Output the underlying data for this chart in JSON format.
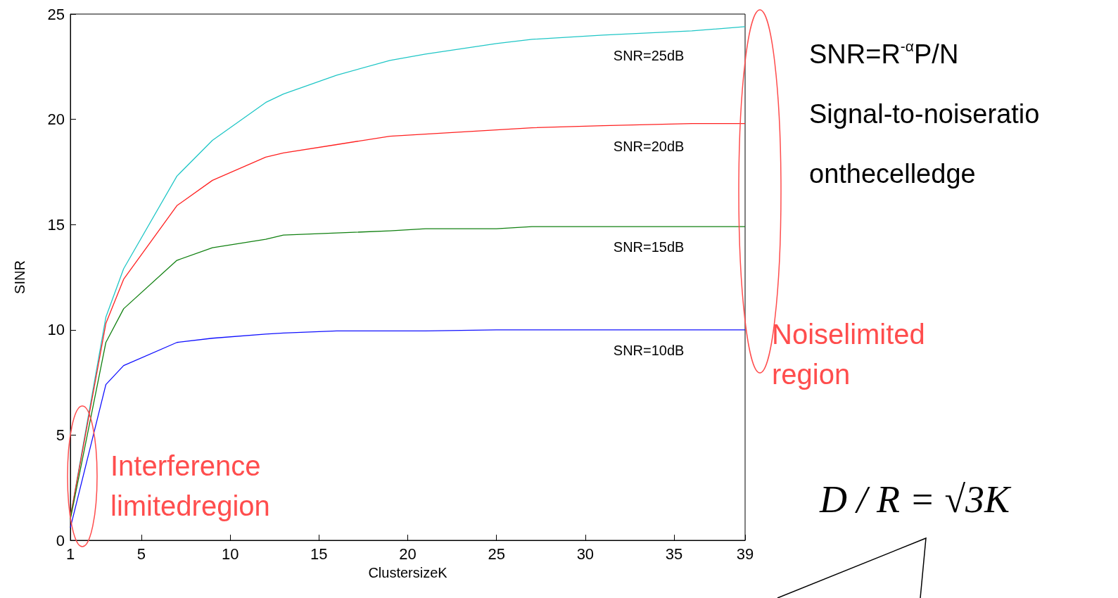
{
  "chart_data": {
    "type": "line",
    "xlabel": "ClustersizeK",
    "ylabel": "SINR",
    "x": [
      1,
      3,
      4,
      7,
      9,
      12,
      13,
      16,
      19,
      21,
      25,
      27,
      31,
      36,
      39
    ],
    "series": [
      {
        "name": "SNR=25dB",
        "color": "#1fc6c6",
        "values": [
          1.1,
          10.6,
          12.9,
          17.3,
          19.0,
          20.8,
          21.2,
          22.1,
          22.8,
          23.1,
          23.6,
          23.8,
          24.0,
          24.2,
          24.4
        ]
      },
      {
        "name": "SNR=20dB",
        "color": "#ff2020",
        "values": [
          1.1,
          10.3,
          12.4,
          15.9,
          17.1,
          18.2,
          18.4,
          18.8,
          19.2,
          19.3,
          19.5,
          19.6,
          19.7,
          19.8,
          19.8
        ]
      },
      {
        "name": "SNR=15dB",
        "color": "#108010",
        "values": [
          1.0,
          9.4,
          11.0,
          13.3,
          13.9,
          14.3,
          14.5,
          14.6,
          14.7,
          14.8,
          14.8,
          14.9,
          14.9,
          14.9,
          14.9
        ]
      },
      {
        "name": "SNR=10dB",
        "color": "#1010ff",
        "values": [
          0.6,
          7.4,
          8.3,
          9.4,
          9.6,
          9.8,
          9.85,
          9.95,
          9.95,
          9.95,
          10.0,
          10.0,
          10.0,
          10.0,
          10.0
        ]
      }
    ],
    "xlim": [
      1,
      39
    ],
    "xticks": [
      1,
      5,
      10,
      15,
      20,
      25,
      30,
      35,
      39
    ],
    "ylim": [
      0,
      25
    ],
    "yticks": [
      0,
      5,
      10,
      15,
      20,
      25
    ],
    "grid": false,
    "legend": false,
    "marker": "none",
    "line_style": "solid",
    "annotations": [
      "Interference\nlimitedregion",
      "Noiselimited\nregion",
      "SNR=R$^{-α}$P/N",
      "Signal-to-noiseratio",
      "onthecelledge",
      "D / R = √3K"
    ]
  }
}
